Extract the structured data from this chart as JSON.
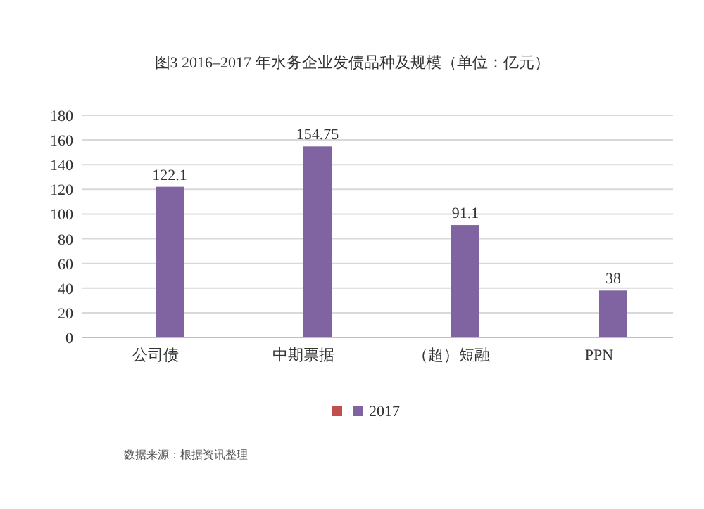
{
  "chart_data": {
    "type": "bar",
    "title": "图3   2016–2017 年水务企业发债品种及规模（单位：亿元）",
    "categories": [
      "公司债",
      "中期票据",
      "（超）短融",
      "PPN"
    ],
    "series": [
      {
        "color": "#c0504d",
        "values": [
          null,
          null,
          null,
          null
        ]
      },
      {
        "name": "2017",
        "color": "#8064a2",
        "values": [
          122.1,
          154.75,
          91.1,
          38
        ]
      }
    ],
    "ylim": [
      0,
      180
    ],
    "yticks": [
      0,
      20,
      40,
      60,
      80,
      100,
      120,
      140,
      160,
      180
    ],
    "grid": "y",
    "legend": "bottom",
    "data_labels": true,
    "annotations": [
      "数据来源：根据资讯整理"
    ]
  }
}
